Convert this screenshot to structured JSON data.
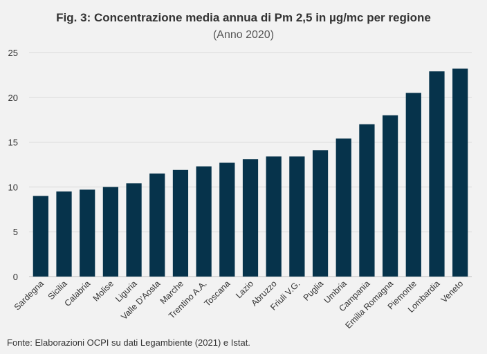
{
  "chart_data": {
    "type": "bar",
    "title": "Fig. 3: Concentrazione media annua di Pm 2,5 in µg/mc per regione",
    "subtitle": "(Anno 2020)",
    "xlabel": "",
    "ylabel": "",
    "ylim": [
      0,
      25
    ],
    "yticks": [
      "0",
      "5",
      "10",
      "15",
      "20",
      "25"
    ],
    "grid": true,
    "legend": "none",
    "bar_color": "#06334b",
    "categories": [
      "Sardegna",
      "Sicilia",
      "Calabria",
      "Molise",
      "Liguria",
      "Valle D'Aosta",
      "Marche",
      "Trentino A.A.",
      "Toscana",
      "Lazio",
      "Abruzzo",
      "Friuli V.G.",
      "Puglia",
      "Umbria",
      "Campania",
      "Emilia Romagna",
      "Piemonte",
      "Lombardia",
      "Veneto"
    ],
    "values": [
      9.0,
      9.5,
      9.7,
      10.0,
      10.4,
      11.5,
      11.9,
      12.3,
      12.7,
      13.1,
      13.4,
      13.4,
      14.1,
      15.4,
      17.0,
      18.0,
      20.5,
      22.9,
      23.2
    ]
  },
  "source": "Fonte: Elaborazioni OCPI su dati Legambiente (2021) e Istat."
}
